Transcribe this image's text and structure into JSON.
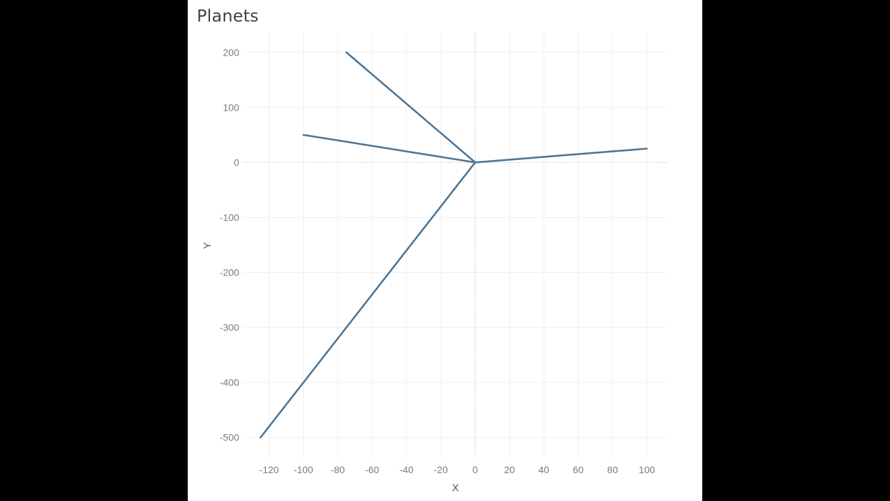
{
  "chart_data": {
    "type": "line",
    "title": "Planets",
    "xlabel": "X",
    "ylabel": "Y",
    "xlim": [
      -135,
      112
    ],
    "ylim": [
      -537,
      237
    ],
    "x_ticks": [
      -120,
      -100,
      -80,
      -60,
      -40,
      -20,
      0,
      20,
      40,
      60,
      80,
      100
    ],
    "y_ticks": [
      200,
      100,
      0,
      -100,
      -200,
      -300,
      -400,
      -500
    ],
    "grid": true,
    "series": [
      {
        "x": [
          0,
          -75
        ],
        "y": [
          0,
          200
        ]
      },
      {
        "x": [
          0,
          -100
        ],
        "y": [
          0,
          50
        ]
      },
      {
        "x": [
          0,
          100
        ],
        "y": [
          0,
          25
        ]
      },
      {
        "x": [
          0,
          -125
        ],
        "y": [
          0,
          -500
        ]
      }
    ],
    "line_color": "#4e7594",
    "grid_color": "#efefef",
    "zero_line_color": "#c8c8c8"
  }
}
